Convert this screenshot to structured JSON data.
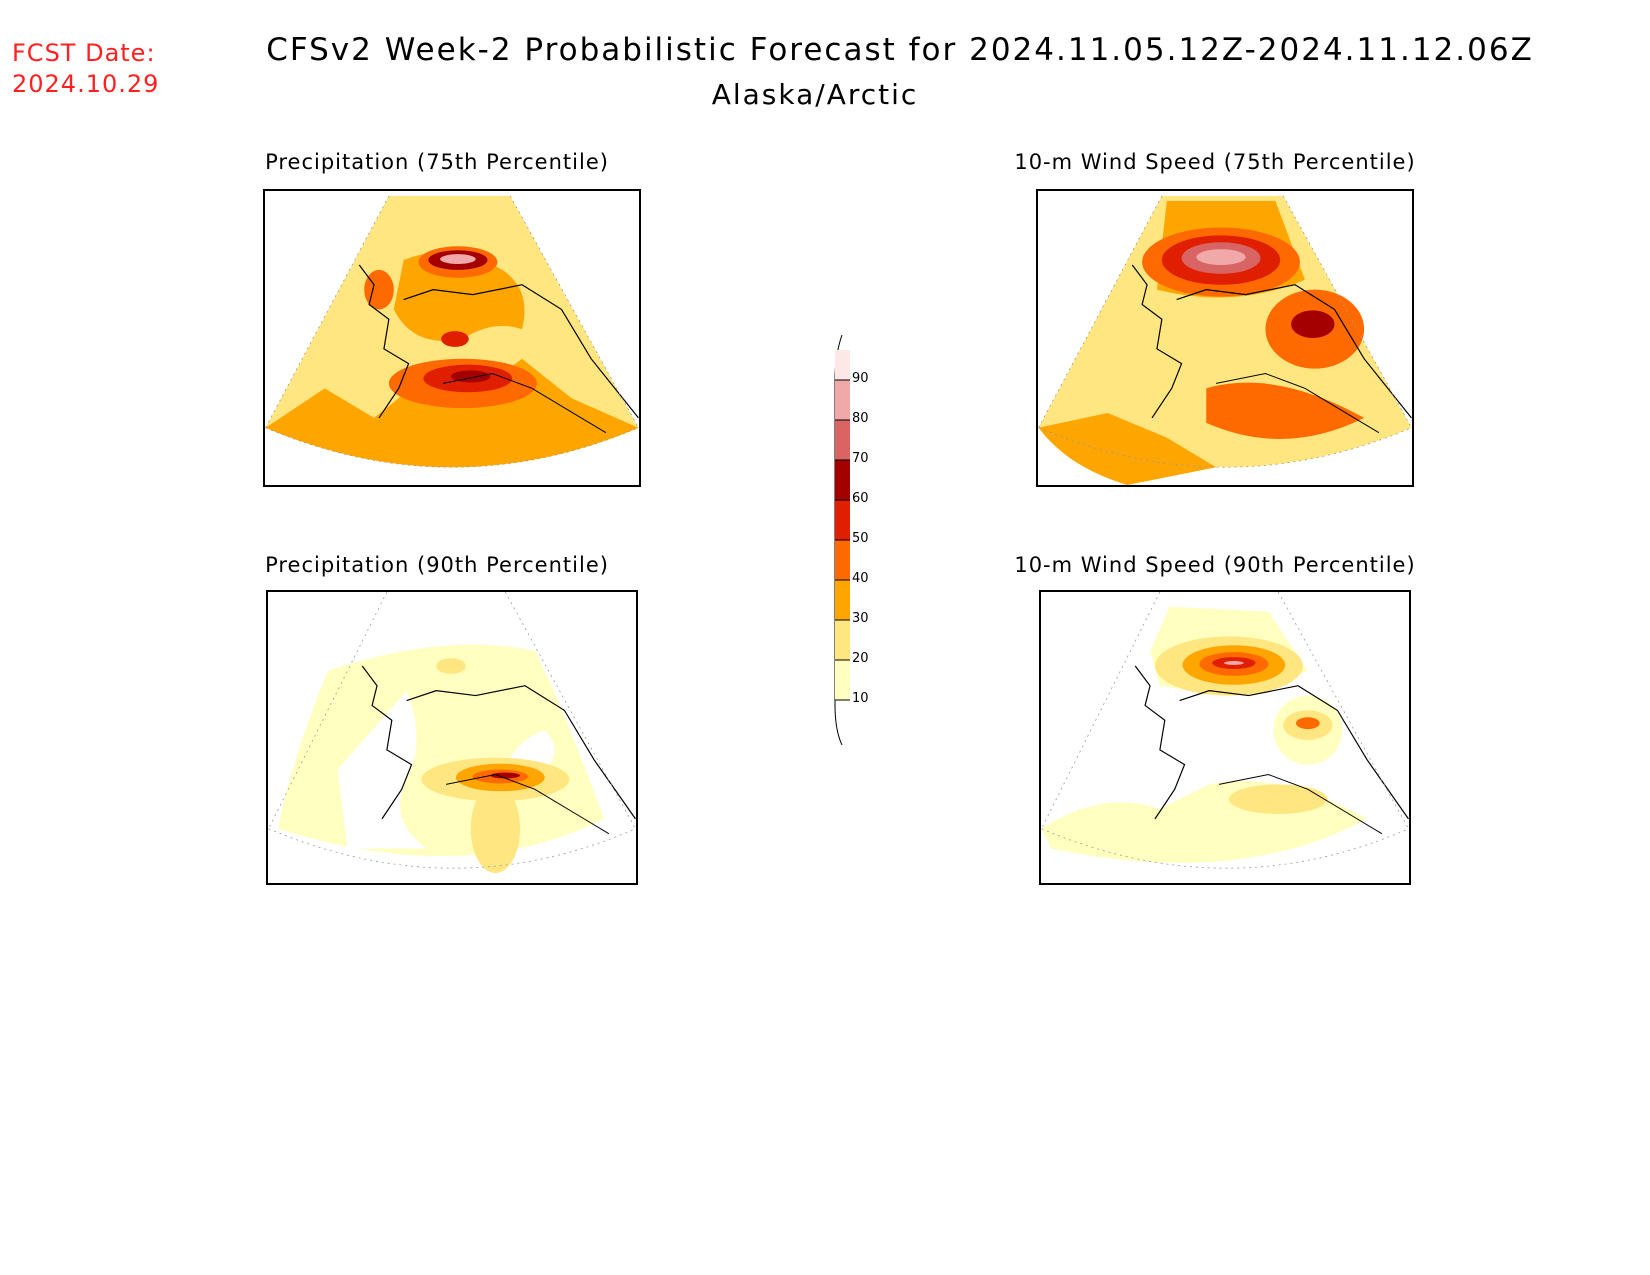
{
  "header": {
    "fcst_label": "FCST Date:",
    "fcst_date": "2024.10.29",
    "title": "CFSv2 Week-2 Probabilistic Forecast for 2024.11.05.12Z-2024.11.12.06Z",
    "subtitle": "Alaska/Arctic"
  },
  "panels": [
    {
      "title": "Precipitation (75th Percentile)"
    },
    {
      "title": "10-m Wind Speed (75th Percentile)"
    },
    {
      "title": "Precipitation (90th Percentile)"
    },
    {
      "title": "10-m Wind Speed (90th Percentile)"
    }
  ],
  "colorbar": {
    "labels": [
      "90",
      "80",
      "70",
      "60",
      "50",
      "40",
      "30",
      "20",
      "10"
    ],
    "colors": {
      "10": "#ffffc0",
      "20": "#ffe680",
      "30": "#ffa500",
      "40": "#ff6a00",
      "50": "#e01e00",
      "60": "#a50000",
      "70": "#d96464",
      "80": "#f0a8a8",
      "90": "#fde8e8"
    }
  }
}
